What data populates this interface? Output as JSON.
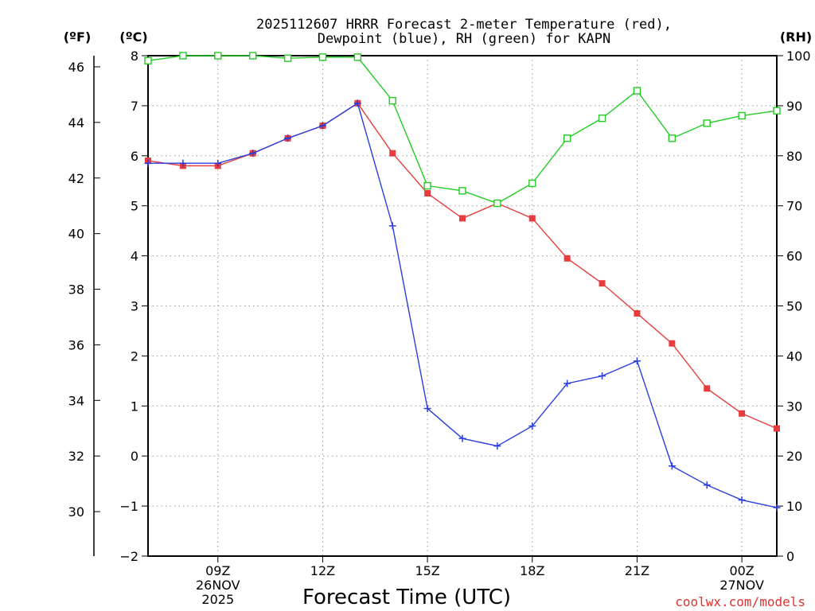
{
  "title": {
    "line1": "2025112607 HRRR Forecast 2-meter Temperature (red),",
    "line2": "Dewpoint (blue), RH (green) for KAPN"
  },
  "units": {
    "left_f": "(ºF)",
    "left_c": "(ºC)",
    "right_rh": "(RH)"
  },
  "xlabel": "Forecast Time (UTC)",
  "credit": "coolwx.com/models",
  "colors": {
    "temperature": "#e83c3c",
    "dewpoint": "#2a3fe0",
    "rh": "#22cc22",
    "credit": "#e03232"
  },
  "chart_data": {
    "type": "line",
    "title": "2025112607 HRRR Forecast 2-meter Temperature (red), Dewpoint (blue), RH (green) for KAPN",
    "xlabel": "Forecast Time (UTC)",
    "x_hours_utc": [
      7,
      8,
      9,
      10,
      11,
      12,
      13,
      14,
      15,
      16,
      17,
      18,
      19,
      20,
      21,
      22,
      23,
      24,
      25
    ],
    "xlim": [
      7,
      25
    ],
    "x_ticks": [
      {
        "hour": 9,
        "label": "09Z",
        "sub": [
          "26NOV",
          "2025"
        ]
      },
      {
        "hour": 12,
        "label": "12Z",
        "sub": []
      },
      {
        "hour": 15,
        "label": "15Z",
        "sub": []
      },
      {
        "hour": 18,
        "label": "18Z",
        "sub": []
      },
      {
        "hour": 21,
        "label": "21Z",
        "sub": []
      },
      {
        "hour": 24,
        "label": "00Z",
        "sub": [
          "27NOV"
        ]
      }
    ],
    "y_celsius": {
      "range": [
        -2,
        8
      ],
      "ticks": [
        "-2",
        "-1",
        "0",
        "1",
        "2",
        "3",
        "4",
        "5",
        "6",
        "7",
        "8"
      ]
    },
    "y_fahrenheit": {
      "ticks": [
        "30",
        "32",
        "34",
        "36",
        "38",
        "40",
        "42",
        "44",
        "46"
      ]
    },
    "y_rh": {
      "range": [
        0,
        100
      ],
      "ticks": [
        "0",
        "10",
        "20",
        "30",
        "40",
        "50",
        "60",
        "70",
        "80",
        "90",
        "100"
      ]
    },
    "series": [
      {
        "name": "Temperature",
        "axis": "celsius",
        "marker": "filled-square",
        "values": [
          5.9,
          5.8,
          5.8,
          6.05,
          6.35,
          6.6,
          7.05,
          6.05,
          5.25,
          4.75,
          5.05,
          4.75,
          3.95,
          3.45,
          2.85,
          2.25,
          1.35,
          0.85,
          0.55
        ]
      },
      {
        "name": "Dewpoint",
        "axis": "celsius",
        "marker": "plus",
        "values": [
          5.85,
          5.85,
          5.85,
          6.05,
          6.35,
          6.6,
          7.05,
          4.6,
          0.95,
          0.35,
          0.2,
          0.6,
          1.45,
          1.6,
          1.9,
          -0.2,
          -0.58,
          -0.88,
          -1.03
        ]
      },
      {
        "name": "RH",
        "axis": "rh",
        "marker": "open-square",
        "values": [
          99,
          100,
          100,
          100,
          99.5,
          99.7,
          99.7,
          91,
          74,
          73,
          70.5,
          74.5,
          83.5,
          87.5,
          93,
          83.5,
          86.5,
          88,
          89
        ]
      }
    ]
  }
}
